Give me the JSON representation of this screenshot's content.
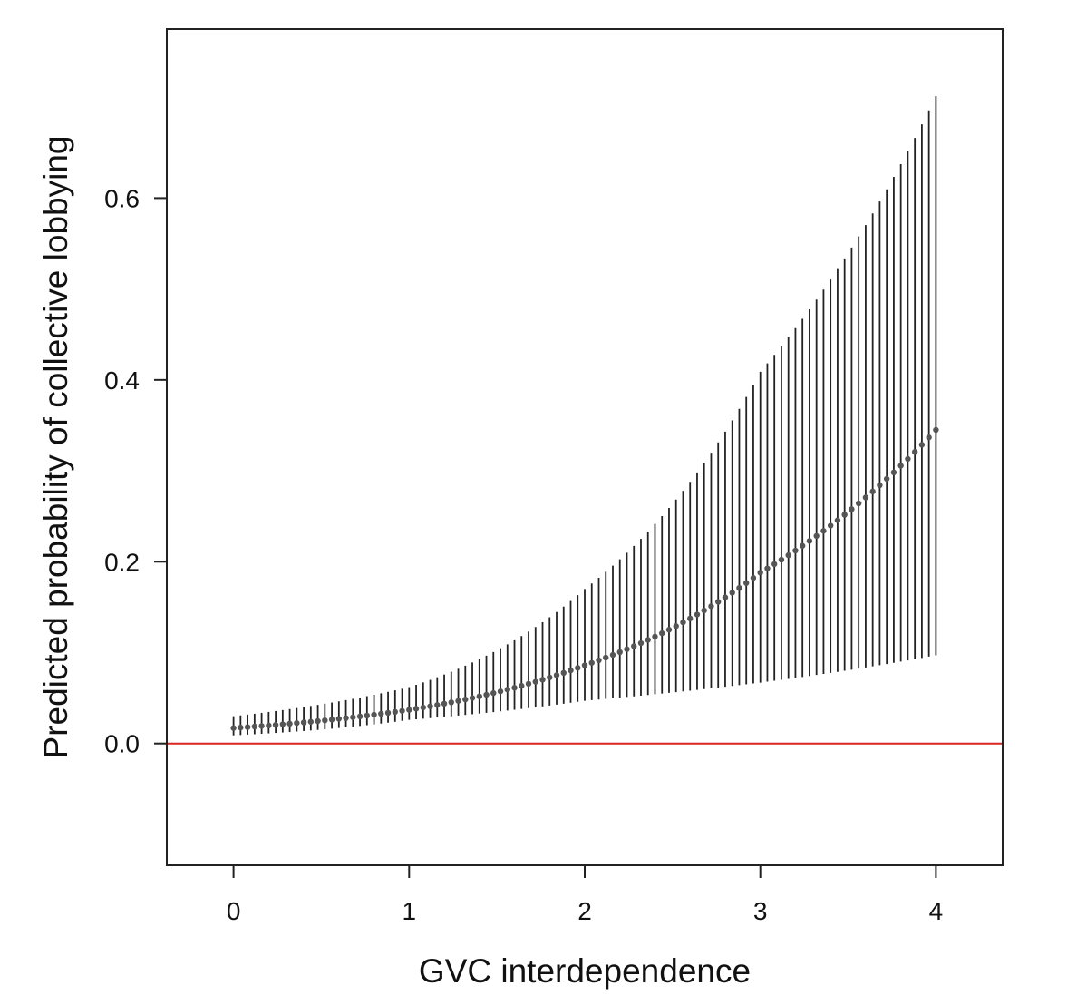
{
  "chart_data": {
    "type": "scatter",
    "title": "",
    "xlabel": "GVC interdependence",
    "ylabel": "Predicted probability of collective lobbying",
    "xlim": [
      -0.38,
      4.38
    ],
    "ylim": [
      -0.134,
      0.786
    ],
    "xticks": [
      0,
      1,
      2,
      3,
      4
    ],
    "xtick_labels": [
      "0",
      "1",
      "2",
      "3",
      "4"
    ],
    "yticks": [
      0.0,
      0.2,
      0.4,
      0.6
    ],
    "ytick_labels": [
      "0.0",
      "0.2",
      "0.4",
      "0.6"
    ],
    "grid": false,
    "x_range": [
      0,
      4
    ],
    "n_points": 101,
    "series": [
      {
        "name": "predicted probability (point estimate)",
        "x_anchor": [
          0,
          1,
          2,
          3,
          4
        ],
        "y_anchor": [
          0.017,
          0.037,
          0.086,
          0.188,
          0.345
        ]
      },
      {
        "name": "95% CI lower",
        "x_anchor": [
          0,
          1,
          2,
          3,
          4
        ],
        "y_anchor": [
          0.009,
          0.026,
          0.047,
          0.067,
          0.097
        ]
      },
      {
        "name": "95% CI upper",
        "x_anchor": [
          0,
          1,
          2,
          3,
          4
        ],
        "y_anchor": [
          0.03,
          0.062,
          0.17,
          0.409,
          0.712
        ]
      }
    ],
    "reference_line": {
      "y": 0.0,
      "color": "#dd2222"
    },
    "colors": {
      "point": "#555555",
      "ci": "#222222",
      "axis": "#222222",
      "reference": "#dd2222"
    }
  }
}
